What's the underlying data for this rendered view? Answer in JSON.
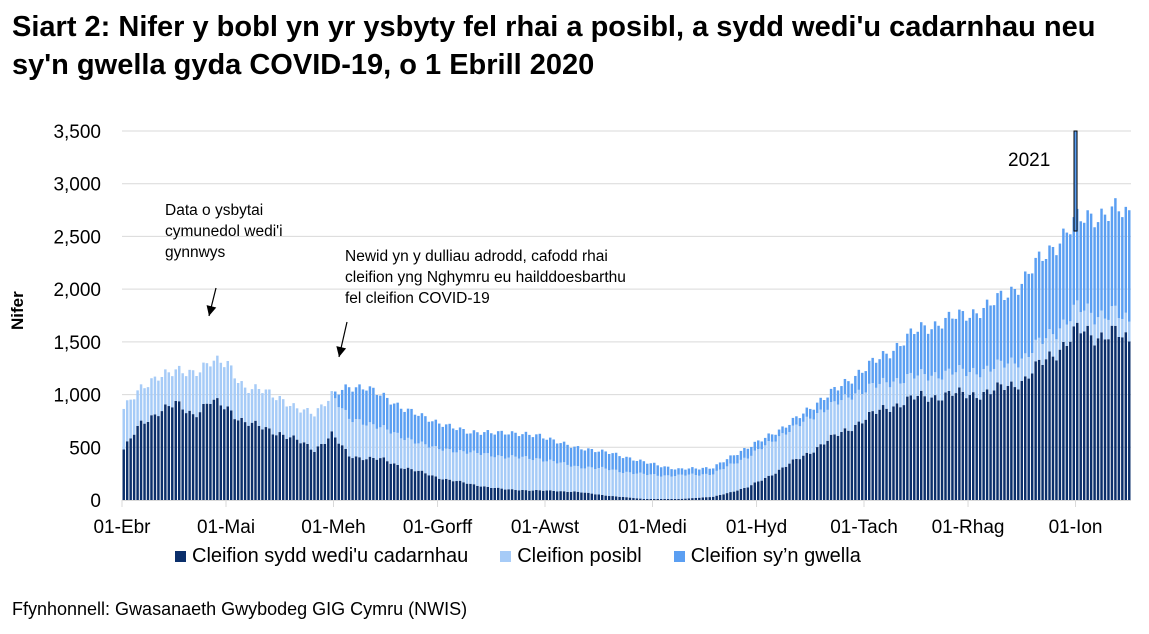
{
  "title": "Siart 2: Nifer y bobl yn yr ysbyty fel rhai a posibl, a sydd wedi'u cadarnhau neu sy'n gwella gyda COVID-19, o 1 Ebrill 2020",
  "source": "Ffynhonnell: Gwasanaeth Gwybodeg GIG Cymru (NWIS)",
  "annotations": {
    "community": "Data o ysbytai cymunedol wedi'i gynnwys",
    "community_lines": [
      "Data o ysbytai",
      "cymunedol wedi'i",
      "gynnwys"
    ],
    "reclass_lines": [
      "Newid yn y dulliau adrodd, cafodd rhai",
      "cleifion yng Nghymru eu hailddoesbarthu",
      "fel cleifion COVID-19"
    ],
    "year_marker": "2021"
  },
  "colors": {
    "confirmed": "#0b2f6b",
    "suspected": "#a6cbf7",
    "recovering": "#5b9ff2",
    "grid": "#d9d9d9"
  },
  "chart_data": {
    "type": "bar",
    "stacked": true,
    "title": "Siart 2: Nifer y bobl yn yr ysbyty fel rhai a posibl, a sydd wedi'u cadarnhau neu sy'n gwella gyda COVID-19, o 1 Ebrill 2020",
    "xlabel": "",
    "ylabel": "Nifer",
    "ylim": [
      0,
      3500
    ],
    "yticks": [
      "0",
      "500",
      "1,000",
      "1,500",
      "2,000",
      "2,500",
      "3,000",
      "3,500"
    ],
    "ytick_values": [
      0,
      500,
      1000,
      1500,
      2000,
      2500,
      3000,
      3500
    ],
    "xticks": [
      "01-Ebr",
      "01-Mai",
      "01-Meh",
      "01-Gorff",
      "01-Awst",
      "01-Medi",
      "01-Hyd",
      "01-Tach",
      "01-Rhag",
      "01-Ion"
    ],
    "xtick_day_index": [
      0,
      30,
      61,
      91,
      122,
      153,
      183,
      214,
      244,
      275
    ],
    "grid": true,
    "legend_position": "bottom",
    "start_date": "01-Ebr",
    "anchors_day_index": [
      0,
      5,
      10,
      15,
      20,
      25,
      30,
      35,
      40,
      45,
      50,
      55,
      60,
      65,
      70,
      75,
      80,
      90,
      100,
      110,
      120,
      130,
      140,
      150,
      160,
      170,
      180,
      190,
      200,
      210,
      220,
      230,
      240,
      250,
      260,
      270,
      275,
      280,
      285,
      290
    ],
    "series": [
      {
        "name": "Cleifion sydd wedi'u cadarnhau",
        "values": [
          480,
          720,
          850,
          900,
          820,
          930,
          870,
          740,
          680,
          640,
          560,
          480,
          620,
          420,
          400,
          380,
          320,
          220,
          150,
          100,
          90,
          80,
          40,
          10,
          10,
          30,
          120,
          300,
          500,
          700,
          880,
          980,
          1000,
          1020,
          1150,
          1450,
          1600,
          1560,
          1600,
          1480
        ]
      },
      {
        "name": "Cleifion posibl",
        "values": [
          400,
          330,
          340,
          310,
          390,
          380,
          420,
          320,
          360,
          330,
          300,
          340,
          380,
          350,
          330,
          300,
          280,
          270,
          300,
          310,
          300,
          240,
          250,
          230,
          220,
          220,
          290,
          320,
          320,
          300,
          240,
          200,
          210,
          220,
          210,
          200,
          210,
          200,
          190,
          180
        ]
      },
      {
        "name": "Cleifion sy'n gwella",
        "values": [
          0,
          0,
          0,
          0,
          0,
          0,
          0,
          0,
          0,
          0,
          0,
          0,
          0,
          300,
          340,
          300,
          280,
          250,
          190,
          230,
          220,
          180,
          160,
          120,
          60,
          60,
          90,
          60,
          100,
          160,
          270,
          450,
          520,
          600,
          740,
          840,
          820,
          960,
          940,
          1040
        ]
      }
    ]
  },
  "legend": [
    {
      "label": "Cleifion sydd wedi'u cadarnhau",
      "color": "#0b2f6b"
    },
    {
      "label": "Cleifion posibl",
      "color": "#a6cbf7"
    },
    {
      "label": "Cleifion sy’n gwella",
      "color": "#5b9ff2"
    }
  ]
}
